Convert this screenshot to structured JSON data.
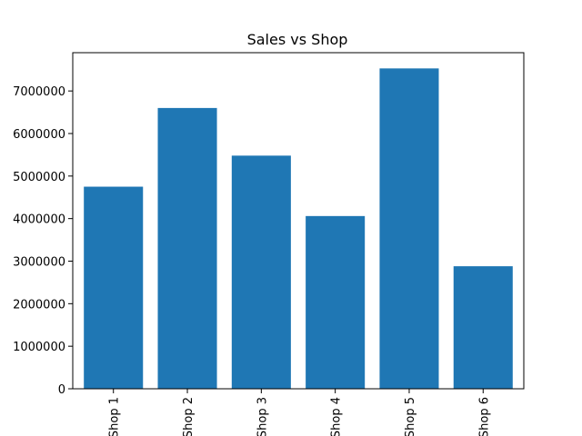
{
  "chart_data": {
    "type": "bar",
    "title": "Sales vs Shop",
    "xlabel": "",
    "ylabel": "",
    "categories": [
      "Shop 1",
      "Shop 2",
      "Shop 3",
      "Shop 4",
      "Shop 5",
      "Shop 6"
    ],
    "values": [
      4750000,
      6600000,
      5480000,
      4060000,
      7530000,
      2880000
    ],
    "ylim": [
      0,
      7900000
    ],
    "yticks": [
      0,
      1000000,
      2000000,
      3000000,
      4000000,
      5000000,
      6000000,
      7000000
    ],
    "ytick_labels": [
      "0",
      "1000000",
      "2000000",
      "3000000",
      "4000000",
      "5000000",
      "6000000",
      "7000000"
    ],
    "bar_color": "#1f77b4",
    "grid": false,
    "legend": "none"
  }
}
